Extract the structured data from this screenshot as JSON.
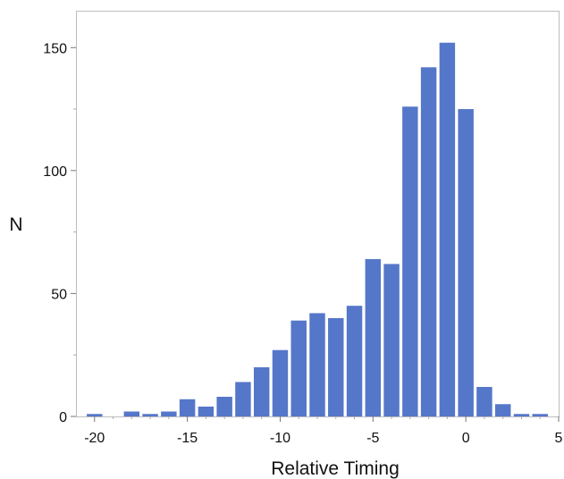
{
  "chart_data": {
    "type": "bar",
    "xlabel": "Relative Timing",
    "ylabel": "N",
    "xlim": [
      -21,
      5
    ],
    "ylim": [
      0,
      165
    ],
    "xticks": [
      -20,
      -15,
      -10,
      -5,
      0,
      5
    ],
    "yticks": [
      0,
      50,
      100,
      150
    ],
    "grid": false,
    "bar_color": "#5577c9",
    "series": [
      {
        "x": [
          -20,
          -18,
          -17,
          -16,
          -15,
          -14,
          -13,
          -12,
          -11,
          -10,
          -9,
          -8,
          -7,
          -6,
          -5,
          -4,
          -3,
          -2,
          -1,
          0,
          1,
          2,
          3,
          4
        ],
        "values": [
          1,
          2,
          1,
          2,
          7,
          4,
          8,
          14,
          20,
          27,
          39,
          42,
          40,
          45,
          64,
          62,
          126,
          142,
          152,
          125,
          12,
          5,
          1,
          1
        ]
      }
    ]
  }
}
